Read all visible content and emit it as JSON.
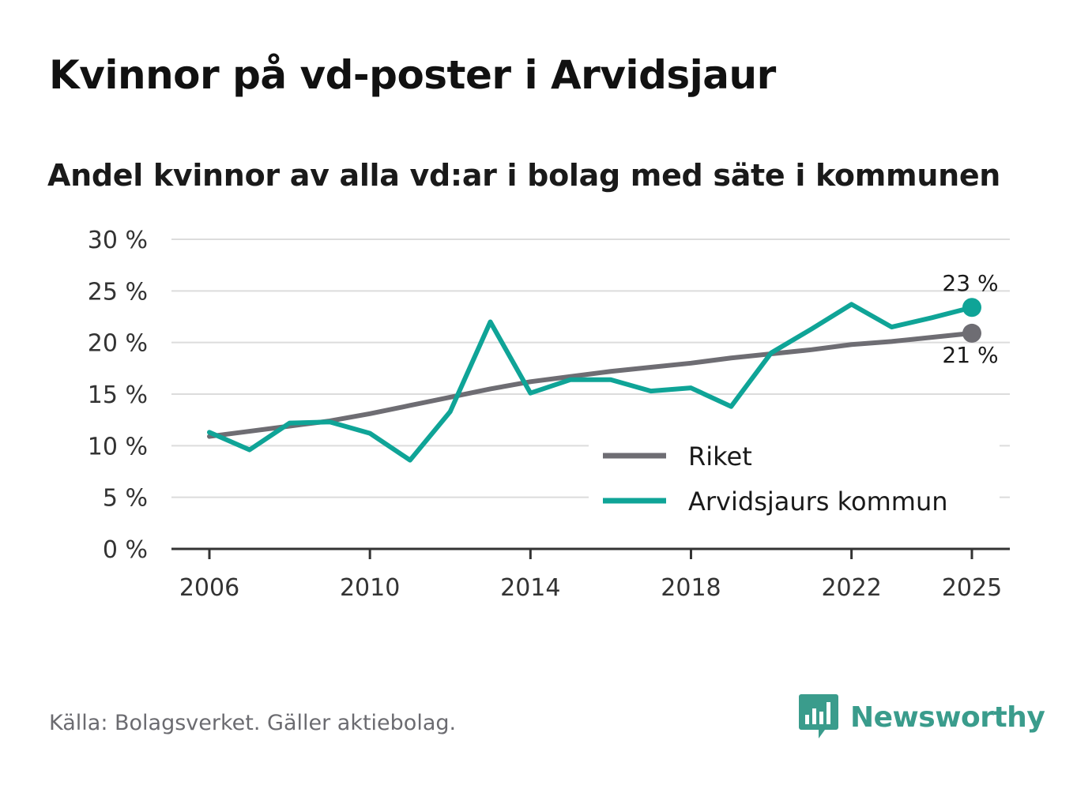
{
  "title": "Kvinnor på vd-poster i Arvidsjaur",
  "subtitle": "Andel kvinnor av alla vd:ar i bolag med säte i kommunen",
  "source": "Källa: Bolagsverket. Gäller aktiebolag.",
  "brand": {
    "name": "Newsworthy",
    "color": "#3a9c8c"
  },
  "chart_data": {
    "type": "line",
    "x": [
      2006,
      2007,
      2008,
      2009,
      2010,
      2011,
      2012,
      2013,
      2014,
      2015,
      2016,
      2017,
      2018,
      2019,
      2020,
      2021,
      2022,
      2023,
      2024,
      2025
    ],
    "xticks": [
      2006,
      2010,
      2014,
      2018,
      2022,
      2025
    ],
    "xtick_labels": [
      "2006",
      "2010",
      "2014",
      "2018",
      "2022",
      "2025"
    ],
    "ylim": [
      0,
      30
    ],
    "yticks": [
      0,
      5,
      10,
      15,
      20,
      25,
      30
    ],
    "ytick_labels": [
      "0 %",
      "5 %",
      "10 %",
      "15 %",
      "20 %",
      "25 %",
      "30 %"
    ],
    "grid": true,
    "legend_position": "bottom-right",
    "series": [
      {
        "name": "Riket",
        "color": "#6e6d73",
        "values": [
          10.9,
          11.4,
          11.9,
          12.4,
          13.1,
          13.9,
          14.7,
          15.5,
          16.2,
          16.7,
          17.2,
          17.6,
          18.0,
          18.5,
          18.9,
          19.3,
          19.8,
          20.1,
          20.5,
          20.9
        ],
        "end_label": "21 %"
      },
      {
        "name": "Arvidsjaurs kommun",
        "color": "#0fa497",
        "values": [
          11.3,
          9.6,
          12.2,
          12.3,
          11.2,
          8.6,
          13.3,
          22.0,
          15.1,
          16.4,
          16.4,
          15.3,
          15.6,
          13.8,
          19.0,
          21.3,
          23.7,
          21.5,
          22.4,
          23.4
        ],
        "end_label": "23 %"
      }
    ]
  }
}
